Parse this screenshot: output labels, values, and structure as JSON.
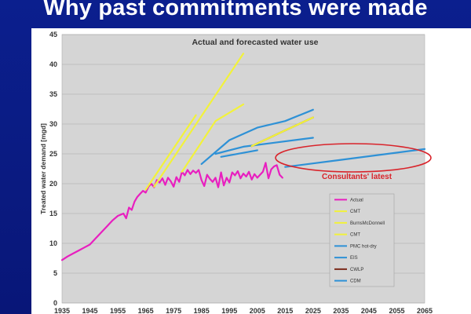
{
  "slide": {
    "title": "Why past commitments were made"
  },
  "chart_data": {
    "type": "line",
    "title": "Actual and forecasted water use",
    "xlabel": "",
    "ylabel": "Treated water demand [mgd]",
    "xlim": [
      1935,
      2065
    ],
    "ylim": [
      0,
      45
    ],
    "xticks": [
      1935,
      1945,
      1955,
      1965,
      1975,
      1985,
      1995,
      2005,
      2015,
      2025,
      2035,
      2045,
      2055,
      2065
    ],
    "yticks": [
      0,
      5,
      10,
      15,
      20,
      25,
      30,
      35,
      40,
      45
    ],
    "grid": "horizontal",
    "legend_position": "bottom-right",
    "annotation": "Consultants' latest",
    "annotation_color": "#d9232a",
    "series": [
      {
        "name": "Actual",
        "color": "#e81fbf",
        "x": [
          1935,
          1937,
          1939,
          1941,
          1943,
          1945,
          1947,
          1949,
          1951,
          1953,
          1955,
          1957,
          1958,
          1959,
          1960,
          1961,
          1962,
          1963,
          1964,
          1965,
          1966,
          1967,
          1968,
          1969,
          1970,
          1971,
          1972,
          1973,
          1974,
          1975,
          1976,
          1977,
          1978,
          1979,
          1980,
          1981,
          1982,
          1983,
          1984,
          1985,
          1986,
          1987,
          1988,
          1989,
          1990,
          1991,
          1992,
          1993,
          1994,
          1995,
          1996,
          1997,
          1998,
          1999,
          2000,
          2001,
          2002,
          2003,
          2004,
          2005,
          2006,
          2007,
          2008,
          2009,
          2010,
          2011,
          2012,
          2013,
          2014
        ],
        "y": [
          7.2,
          7.8,
          8.3,
          8.8,
          9.3,
          9.8,
          10.8,
          11.8,
          12.8,
          13.8,
          14.6,
          15.0,
          14.2,
          16.0,
          15.6,
          17.0,
          17.8,
          18.3,
          18.8,
          18.5,
          19.5,
          20.0,
          19.4,
          20.6,
          20.2,
          20.9,
          19.8,
          21.0,
          20.4,
          19.5,
          21.1,
          20.3,
          22.0,
          21.4,
          22.3,
          21.6,
          22.2,
          21.8,
          22.3,
          20.6,
          19.6,
          21.5,
          20.8,
          20.3,
          21.0,
          19.4,
          21.9,
          19.7,
          21.0,
          20.2,
          21.9,
          21.4,
          22.1,
          20.9,
          21.7,
          21.2,
          22.0,
          20.7,
          21.6,
          21.0,
          21.5,
          22.0,
          23.5,
          20.9,
          22.4,
          22.9,
          23.1,
          21.5,
          21.0
        ]
      },
      {
        "name": "CMT",
        "color": "#f2f23a",
        "x": [
          1965,
          1983
        ],
        "y": [
          19.0,
          31.5
        ]
      },
      {
        "name": "BurnsMcDonnell",
        "color": "#f2f23a",
        "x": [
          1968,
          2000
        ],
        "y": [
          19.5,
          41.8
        ]
      },
      {
        "name": "CMT",
        "color": "#f2f23a",
        "x": [
          1978,
          1990,
          2000
        ],
        "y": [
          22.0,
          30.5,
          33.3
        ]
      },
      {
        "name": "PMC hot-dry",
        "color": "#2e91d6",
        "x": [
          1985,
          1995,
          2005,
          2015,
          2025
        ],
        "y": [
          23.3,
          27.3,
          29.4,
          30.5,
          32.4
        ]
      },
      {
        "name": "EIS",
        "color": "#2e91d6",
        "x": [
          1990,
          2000,
          2010,
          2025
        ],
        "y": [
          25.0,
          26.2,
          26.8,
          27.7
        ]
      },
      {
        "name": "CWLP",
        "color": "#7a2a1a",
        "x": [
          2003,
          2013,
          2025
        ],
        "y": [
          26.3,
          28.5,
          31.1
        ]
      },
      {
        "name": "CDM",
        "color": "#2e91d6",
        "x": [
          2015,
          2035,
          2065
        ],
        "y": [
          22.8,
          24.0,
          25.8
        ]
      }
    ],
    "extra_lines": [
      {
        "color": "#f2f23a",
        "x": [
          2003,
          2013,
          2025
        ],
        "y": [
          26.3,
          28.5,
          31.1
        ]
      },
      {
        "color": "#2e91d6",
        "x": [
          1992,
          2005
        ],
        "y": [
          24.5,
          25.6
        ]
      }
    ]
  }
}
